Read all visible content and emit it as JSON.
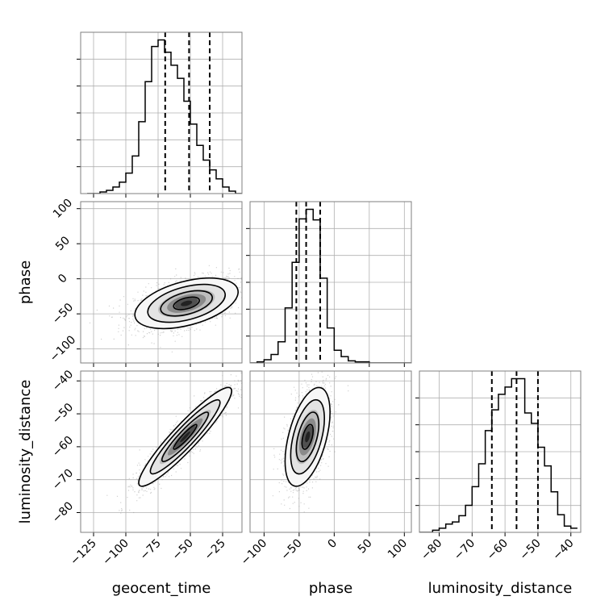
{
  "chart_data": {
    "type": "corner",
    "parameters": [
      "geocent_time",
      "phase",
      "luminosity_distance"
    ],
    "axes": {
      "geocent_time": {
        "range": [
          -135,
          -10
        ],
        "ticks": [
          -125,
          -100,
          -75,
          -50,
          -25
        ]
      },
      "phase": {
        "range": [
          -120,
          110
        ],
        "ticks": [
          -100,
          -50,
          0,
          50,
          100
        ]
      },
      "luminosity_distance": {
        "range": [
          -86,
          -37
        ],
        "ticks": [
          -80,
          -70,
          -60,
          -50,
          -40
        ]
      }
    },
    "diagonal": [
      {
        "parameter": "geocent_time",
        "quantiles": [
          -69.5,
          -51,
          -35
        ],
        "histogram": {
          "edges": [
            -130,
            -125,
            -120,
            -115,
            -110,
            -105,
            -100,
            -95,
            -90,
            -85,
            -80,
            -75,
            -70,
            -65,
            -60,
            -55,
            -50,
            -45,
            -40,
            -35,
            -30,
            -25,
            -20,
            -15,
            -10
          ],
          "counts": [
            0,
            0,
            2,
            4,
            8,
            14,
            25,
            46,
            88,
            137,
            180,
            188,
            173,
            157,
            141,
            113,
            85,
            59,
            41,
            29,
            18,
            8,
            3,
            0
          ]
        }
      },
      {
        "parameter": "phase",
        "quantiles": [
          -54,
          -40,
          -20
        ],
        "histogram": {
          "edges": [
            -120,
            -110,
            -100,
            -90,
            -80,
            -70,
            -60,
            -50,
            -40,
            -30,
            -20,
            -10,
            0,
            10,
            20,
            30,
            40,
            50,
            60,
            70,
            80,
            90,
            100,
            110
          ],
          "counts": [
            0,
            1,
            3,
            8,
            20,
            52,
            95,
            136,
            145,
            135,
            80,
            33,
            12,
            6,
            2,
            1,
            1,
            0,
            0,
            0,
            0,
            0,
            0
          ]
        }
      },
      {
        "parameter": "luminosity_distance",
        "quantiles": [
          -64,
          -56.5,
          -50
        ],
        "histogram": {
          "edges": [
            -86,
            -84,
            -82,
            -80,
            -78,
            -76,
            -74,
            -72,
            -70,
            -68,
            -66,
            -64,
            -62,
            -60,
            -58,
            -56,
            -54,
            -52,
            -50,
            -48,
            -46,
            -44,
            -42,
            -40,
            -38
          ],
          "counts": [
            0,
            0,
            2,
            4,
            8,
            10,
            16,
            26,
            44,
            66,
            98,
            118,
            133,
            140,
            148,
            148,
            115,
            105,
            82,
            64,
            39,
            17,
            6,
            4
          ]
        }
      }
    ],
    "pairs": [
      {
        "x": "geocent_time",
        "y": "phase",
        "center": [
          -53,
          -35
        ],
        "sd": [
          20,
          18
        ],
        "corr": 0.45
      },
      {
        "x": "geocent_time",
        "y": "luminosity_distance",
        "center": [
          -54,
          -57
        ],
        "sd": [
          18,
          7.5
        ],
        "corr": 0.93
      },
      {
        "x": "phase",
        "y": "luminosity_distance",
        "center": [
          -38,
          -57
        ],
        "sd": [
          16,
          7.5
        ],
        "corr": 0.5
      }
    ],
    "grid": true,
    "colors": {
      "line": "#000000",
      "scatter": "#9a9a9a",
      "grid": "#b0b0b0",
      "axes": "#7f7f7f"
    }
  }
}
